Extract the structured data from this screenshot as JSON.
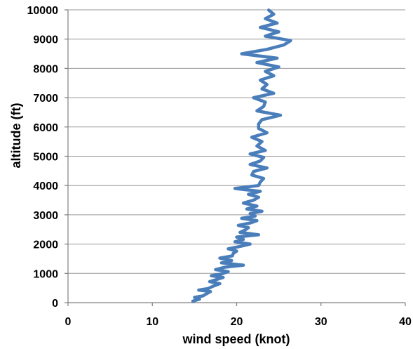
{
  "chart_data": {
    "type": "line",
    "title": "",
    "xlabel": "wind speed (knot)",
    "ylabel": "altitude (ft)",
    "xlim": [
      0,
      40
    ],
    "ylim": [
      0,
      10000
    ],
    "x_ticks": [
      0,
      10,
      20,
      30,
      40
    ],
    "y_ticks": [
      0,
      1000,
      2000,
      3000,
      4000,
      5000,
      6000,
      7000,
      8000,
      9000,
      10000
    ],
    "grid": {
      "horizontal": true,
      "vertical": false
    },
    "legend": "none",
    "colors": {
      "series": "#4A7EBB",
      "grid": "#9A9A9A",
      "axis": "#808080"
    },
    "series": [
      {
        "x": [
          14.8,
          15.6,
          15.0,
          16.0,
          16.4,
          16.9,
          15.5,
          16.6,
          17.2,
          18.0,
          16.8,
          17.6,
          18.4,
          17.0,
          18.2,
          19.0,
          17.5,
          18.6,
          20.8,
          18.2,
          19.4,
          18.0,
          19.5,
          19.6,
          20.0,
          19.0,
          20.4,
          21.6,
          19.8,
          20.8,
          20.0,
          22.6,
          20.4,
          21.0,
          21.4,
          20.2,
          21.6,
          22.4,
          20.6,
          22.2,
          21.6,
          23.0,
          21.2,
          22.4,
          20.8,
          22.0,
          22.6,
          21.4,
          22.8,
          19.8,
          22.6,
          22.8,
          23.2,
          21.8,
          22.0,
          23.6,
          21.6,
          22.8,
          23.2,
          21.6,
          23.4,
          22.4,
          23.0,
          21.8,
          23.6,
          22.6,
          22.6,
          23.0,
          25.2,
          22.4,
          23.2,
          23.4,
          22.0,
          24.4,
          23.0,
          23.6,
          22.8,
          24.4,
          23.4,
          25.0,
          22.4,
          24.8,
          20.6,
          23.6,
          25.6,
          26.4,
          23.4,
          25.0,
          22.8,
          24.8,
          23.4,
          24.4,
          23.8
        ],
        "y": [
          50,
          120,
          180,
          230,
          300,
          380,
          430,
          480,
          560,
          650,
          720,
          790,
          860,
          920,
          980,
          1060,
          1130,
          1210,
          1280,
          1360,
          1440,
          1520,
          1600,
          1680,
          1760,
          1840,
          1920,
          2000,
          2080,
          2160,
          2240,
          2320,
          2400,
          2480,
          2560,
          2640,
          2720,
          2800,
          2880,
          2960,
          3040,
          3120,
          3200,
          3300,
          3400,
          3500,
          3600,
          3700,
          3800,
          3900,
          4000,
          4120,
          4240,
          4360,
          4480,
          4600,
          4720,
          4840,
          4960,
          5080,
          5200,
          5350,
          5500,
          5650,
          5800,
          5950,
          6100,
          6250,
          6400,
          6550,
          6700,
          6850,
          7000,
          7150,
          7300,
          7450,
          7600,
          7750,
          7900,
          8050,
          8200,
          8350,
          8500,
          8650,
          8800,
          8950,
          9100,
          9250,
          9400,
          9550,
          9700,
          9850,
          9990
        ]
      }
    ]
  }
}
